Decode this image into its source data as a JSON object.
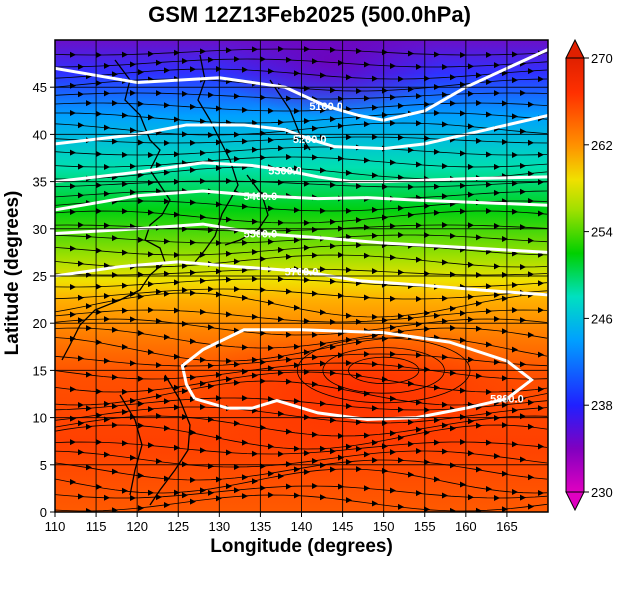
{
  "chart_data": {
    "type": "heatmap",
    "title": "GSM 12Z13Feb2025 (500.0hPa)",
    "xlabel": "Longitude (degrees)",
    "ylabel": "Latitude  (degrees)",
    "xlim": [
      110,
      170
    ],
    "ylim": [
      0,
      50
    ],
    "x_ticks": [
      "110",
      "115",
      "120",
      "125",
      "130",
      "135",
      "140",
      "145",
      "150",
      "155",
      "160",
      "165"
    ],
    "y_ticks": [
      "0",
      "5",
      "10",
      "15",
      "20",
      "25",
      "30",
      "35",
      "40",
      "45"
    ],
    "colorbar": {
      "range": [
        230,
        270
      ],
      "ticks": [
        "230",
        "238",
        "246",
        "254",
        "262",
        "270"
      ],
      "colors": [
        "#e000c0",
        "#8000c0",
        "#2020ff",
        "#00a0ff",
        "#00e0c0",
        "#00d000",
        "#a0e000",
        "#f0e000",
        "#ff9000",
        "#ff3000",
        "#e02000"
      ]
    },
    "contours": [
      {
        "label": "5100.0",
        "points": [
          [
            110,
            47
          ],
          [
            120,
            45.5
          ],
          [
            130,
            46
          ],
          [
            138,
            45
          ],
          [
            143,
            43
          ],
          [
            147,
            42
          ],
          [
            150,
            41.5
          ],
          [
            155,
            42.5
          ],
          [
            160,
            45
          ],
          [
            165,
            47
          ],
          [
            170,
            49
          ]
        ]
      },
      {
        "label": "5200.0",
        "points": [
          [
            110,
            39
          ],
          [
            120,
            40
          ],
          [
            126,
            41
          ],
          [
            133,
            41
          ],
          [
            138,
            40.5
          ],
          [
            141,
            39.5
          ],
          [
            144,
            38.7
          ],
          [
            150,
            38.5
          ],
          [
            155,
            39
          ],
          [
            160,
            40
          ],
          [
            165,
            41
          ],
          [
            170,
            42
          ]
        ]
      },
      {
        "label": "5300.0",
        "points": [
          [
            110,
            35
          ],
          [
            120,
            36
          ],
          [
            128,
            37
          ],
          [
            134,
            36.7
          ],
          [
            138,
            36.2
          ],
          [
            142,
            35.5
          ],
          [
            146,
            35
          ],
          [
            150,
            35
          ],
          [
            160,
            35.3
          ],
          [
            170,
            35.5
          ]
        ]
      },
      {
        "label": "5400.0",
        "points": [
          [
            110,
            32
          ],
          [
            120,
            33.5
          ],
          [
            128,
            34
          ],
          [
            135,
            33.5
          ],
          [
            142,
            33.2
          ],
          [
            148,
            33.3
          ],
          [
            155,
            33
          ],
          [
            170,
            32.5
          ]
        ]
      },
      {
        "label": "5500.0",
        "points": [
          [
            110,
            29.5
          ],
          [
            120,
            30
          ],
          [
            128,
            30.5
          ],
          [
            135,
            29.5
          ],
          [
            143,
            29
          ],
          [
            150,
            28.5
          ],
          [
            160,
            28
          ],
          [
            170,
            27.5
          ]
        ]
      },
      {
        "label": "5700.0",
        "points": [
          [
            110,
            25
          ],
          [
            118,
            26
          ],
          [
            125,
            26.5
          ],
          [
            132,
            26
          ],
          [
            140,
            25.5
          ],
          [
            147,
            24.5
          ],
          [
            155,
            24
          ],
          [
            162,
            23.5
          ],
          [
            170,
            23
          ]
        ]
      },
      {
        "label": "5880.0",
        "points": [
          [
            127,
            12
          ],
          [
            131,
            11
          ],
          [
            134,
            11
          ],
          [
            137,
            11.8
          ],
          [
            142,
            10.5
          ],
          [
            148,
            9.8
          ],
          [
            154,
            10
          ],
          [
            160,
            11
          ],
          [
            165,
            12
          ],
          [
            168,
            14
          ],
          [
            165,
            16
          ],
          [
            158,
            18
          ],
          [
            150,
            19
          ],
          [
            140,
            19.3
          ],
          [
            133,
            19.3
          ],
          [
            128,
            17.2
          ],
          [
            125.5,
            15.5
          ],
          [
            126,
            13.5
          ],
          [
            127,
            12
          ]
        ]
      }
    ]
  }
}
